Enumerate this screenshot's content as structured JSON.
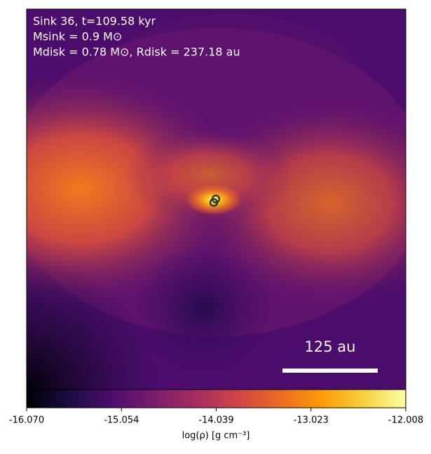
{
  "chart_data": {
    "type": "image",
    "annotations": [
      "Sink 36, t=109.58 kyr",
      "Msink = 0.9 M⊙",
      "Mdisk = 0.78 M⊙, Rdisk = 237.18 au"
    ],
    "scale_bar_label": "125 au",
    "colorbar_label": "log(ρ) [g cm⁻³]",
    "clim": [
      -16.07,
      -12.008
    ],
    "cticks": [
      {
        "value": -16.07,
        "label": "-16.070"
      },
      -15.054,
      -14.039,
      -13.023,
      -12.008
    ],
    "colormap": [
      "#000004",
      "#1b0c41",
      "#4a0c6b",
      "#781c6d",
      "#a52c60",
      "#cf4446",
      "#ed6925",
      "#fb9b06",
      "#f7d13d",
      "#fcffa4"
    ]
  }
}
